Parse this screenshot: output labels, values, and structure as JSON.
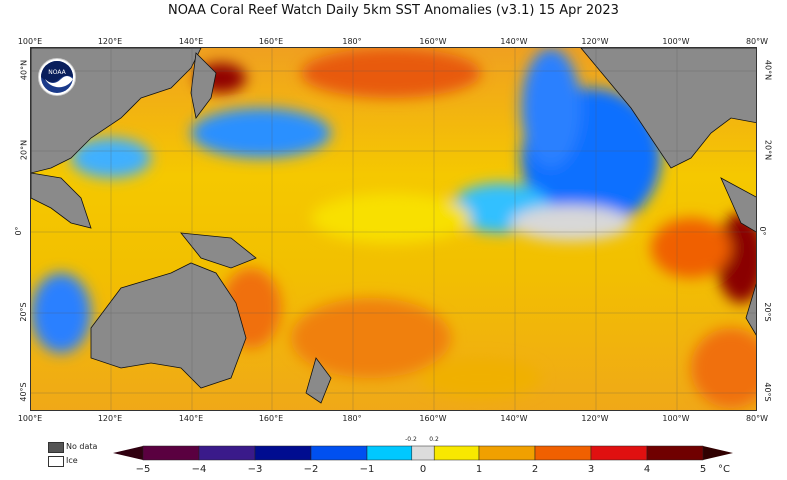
{
  "title": "NOAA Coral Reef Watch Daily 5km SST Anomalies  (v3.1)   15 Apr 2023",
  "lon_labels": [
    "100°E",
    "120°E",
    "140°E",
    "160°E",
    "180°",
    "160°W",
    "140°W",
    "120°W",
    "100°W",
    "80°W"
  ],
  "lat_labels": [
    "40°N",
    "20°N",
    "0°",
    "20°S",
    "40°S"
  ],
  "logo_text": "NOAA",
  "legend": {
    "no_data": "No data",
    "ice": "Ice",
    "no_data_color": "#555555",
    "ice_color": "#ffffff"
  },
  "colorbar": {
    "ticks": [
      "−5",
      "−4",
      "−3",
      "−2",
      "−1",
      "0",
      "1",
      "2",
      "3",
      "4",
      "5"
    ],
    "small_ticks": [
      "-0.2",
      "0.2"
    ],
    "unit": "°C",
    "colors": [
      "#5a0040",
      "#3a1a8a",
      "#000c90",
      "#0050f0",
      "#00c8ff",
      "#dcdcdc",
      "#f8e800",
      "#f0a000",
      "#f06000",
      "#e01010",
      "#700000"
    ]
  }
}
